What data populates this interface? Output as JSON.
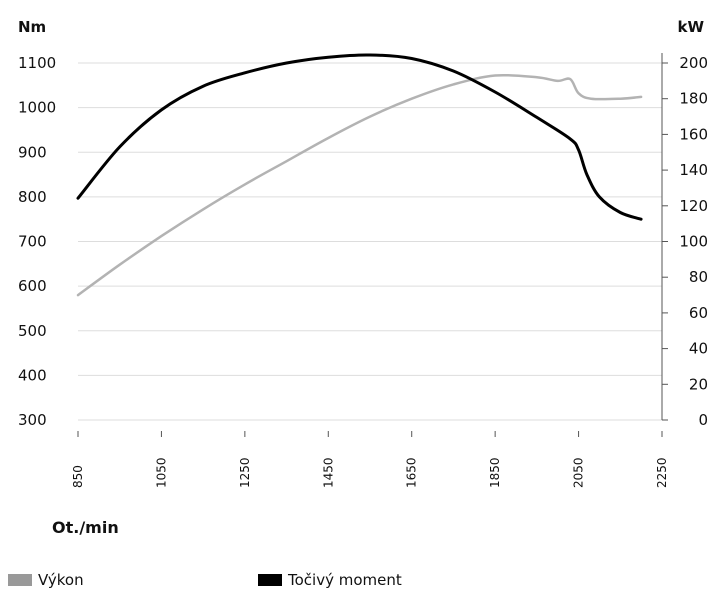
{
  "chart_data": {
    "type": "line",
    "left_axis_unit": "Nm",
    "right_axis_unit": "kW",
    "xlabel": "Ot./min",
    "x_ticks": [
      850,
      1050,
      1250,
      1450,
      1650,
      1850,
      2050,
      2250
    ],
    "y_left_ticks": [
      300,
      400,
      500,
      600,
      700,
      800,
      900,
      1000,
      1100
    ],
    "y_right_ticks": [
      0,
      20,
      40,
      60,
      80,
      100,
      120,
      140,
      160,
      180,
      200
    ],
    "ylim_left": [
      300,
      1100
    ],
    "ylim_right": [
      0,
      200
    ],
    "xlim": [
      850,
      2250
    ],
    "grid": "horizontal",
    "legend_position": "bottom",
    "series": [
      {
        "name": "Výkon",
        "axis": "right",
        "color": "#b3b3b3",
        "points": [
          [
            850,
            70
          ],
          [
            950,
            87
          ],
          [
            1050,
            103
          ],
          [
            1150,
            118
          ],
          [
            1250,
            132
          ],
          [
            1350,
            145
          ],
          [
            1450,
            158
          ],
          [
            1550,
            170
          ],
          [
            1650,
            180
          ],
          [
            1750,
            188
          ],
          [
            1850,
            193
          ],
          [
            1950,
            192
          ],
          [
            2000,
            190
          ],
          [
            2030,
            191
          ],
          [
            2050,
            183
          ],
          [
            2080,
            180
          ],
          [
            2150,
            180
          ],
          [
            2200,
            181
          ]
        ]
      },
      {
        "name": "Točivý moment",
        "axis": "left",
        "color": "#000000",
        "points": [
          [
            850,
            797
          ],
          [
            950,
            912
          ],
          [
            1050,
            995
          ],
          [
            1150,
            1048
          ],
          [
            1250,
            1078
          ],
          [
            1350,
            1100
          ],
          [
            1450,
            1113
          ],
          [
            1550,
            1118
          ],
          [
            1650,
            1110
          ],
          [
            1750,
            1082
          ],
          [
            1850,
            1035
          ],
          [
            1950,
            978
          ],
          [
            2030,
            930
          ],
          [
            2050,
            905
          ],
          [
            2070,
            850
          ],
          [
            2100,
            800
          ],
          [
            2150,
            765
          ],
          [
            2200,
            750
          ]
        ]
      }
    ]
  },
  "axis_titles": {
    "left": "Nm",
    "right": "kW",
    "x": "Ot./min"
  },
  "legend": [
    {
      "label": "Výkon",
      "color": "#999999"
    },
    {
      "label": "Točivý moment",
      "color": "#000000"
    }
  ]
}
